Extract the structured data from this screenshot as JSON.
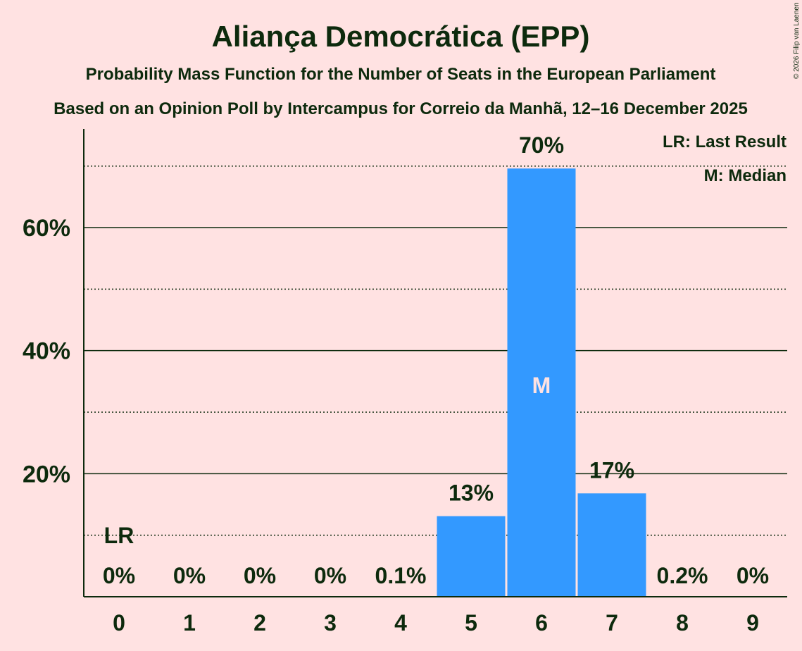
{
  "chart_data": {
    "type": "bar",
    "title": "Aliança Democrática (EPP)",
    "subtitle": "Probability Mass Function for the Number of Seats in the European Parliament",
    "subtitle2": "Based on an Opinion Poll by Intercampus for Correio da Manhã, 12–16 December 2025",
    "copyright": "© 2026 Filip van Laenen",
    "categories": [
      "0",
      "1",
      "2",
      "3",
      "4",
      "5",
      "6",
      "7",
      "8",
      "9"
    ],
    "values": [
      0,
      0,
      0,
      0,
      0.1,
      13.1,
      69.6,
      16.8,
      0.2,
      0
    ],
    "value_labels": [
      "0%",
      "0%",
      "0%",
      "0%",
      "0.1%",
      "13%",
      "70%",
      "17%",
      "0.2%",
      "0%"
    ],
    "ylim": [
      0,
      76
    ],
    "yticks": [
      {
        "value": 20,
        "label": "20%"
      },
      {
        "value": 40,
        "label": "40%"
      },
      {
        "value": 60,
        "label": "60%"
      }
    ],
    "dotted_gridlines": [
      10,
      30,
      50,
      70
    ],
    "last_result": {
      "category_index": 0,
      "label": "LR"
    },
    "median": {
      "category_index": 6,
      "label": "M"
    },
    "legend": {
      "placement": "top-right",
      "lines": [
        "LR: Last Result",
        "M: Median"
      ]
    },
    "bar_color": "#3399FF",
    "background": "#FFE2E2"
  }
}
